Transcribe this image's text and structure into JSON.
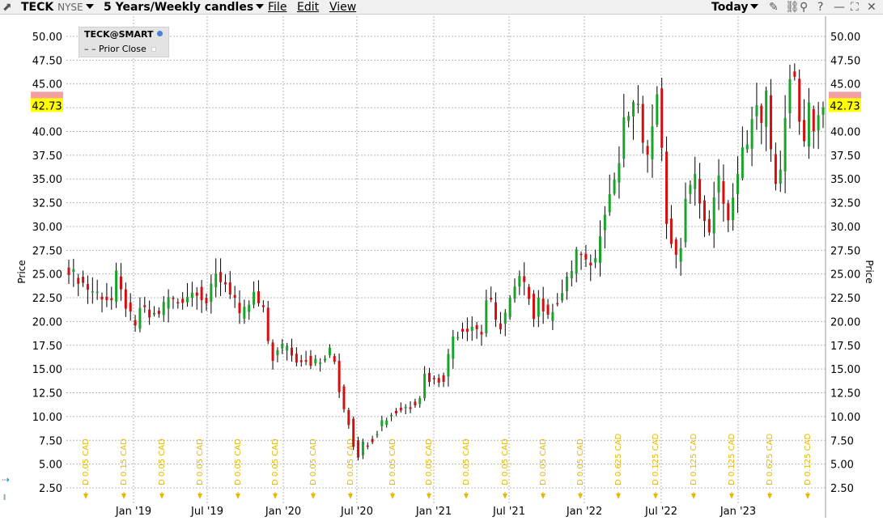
{
  "toolbar": {
    "symbol": "TECK",
    "exchange": "NYSE",
    "period": "5 Years/Weekly candles",
    "menu_file": "File",
    "menu_edit": "Edit",
    "menu_view": "View",
    "range": "Today"
  },
  "legend": {
    "contract": "TECK@SMART",
    "prior_close": "Prior Close"
  },
  "colors": {
    "up": "#1aa32a",
    "down": "#d40f0f",
    "price_tag": "#ffff00",
    "dividend": "#e6b800"
  },
  "price_axis_label": "Price",
  "last_price": "42.73",
  "chart_data": {
    "type": "candlestick",
    "y_ticks": [
      "50.00",
      "47.50",
      "45.00",
      "42.50",
      "40.00",
      "37.50",
      "35.00",
      "32.50",
      "30.00",
      "27.50",
      "25.00",
      "22.50",
      "20.00",
      "17.50",
      "15.00",
      "12.50",
      "10.00",
      "7.50",
      "5.00",
      "2.50"
    ],
    "x_ticks": [
      "Jan '19",
      "Jul '19",
      "Jan '20",
      "Jul '20",
      "Jan '21",
      "Jul '21",
      "Jan '22",
      "Jul '22",
      "Jan '23"
    ],
    "ylim": [
      1.5,
      51.5
    ],
    "dividends": [
      "D 0.05 CAD",
      "D 0.15 CAD",
      "D 0.05 CAD",
      "D 0.05 CAD",
      "D 0.05 CAD",
      "D 0.05 CAD",
      "D 0.05 CAD",
      "D 0.05 CAD",
      "D 0.05 CAD",
      "D 0.05 CAD",
      "D 0.05 CAD",
      "D 0.05 CAD",
      "D 0.05 CAD",
      "D 0.05 CAD",
      "D 0.625 CAD",
      "D 0.125 CAD",
      "D 0.125 CAD",
      "D 0.125 CAD",
      "D 0.625 CAD",
      "D 0.125 CAD"
    ],
    "close_path": [
      [
        0,
        25.5
      ],
      [
        4,
        23.5
      ],
      [
        9,
        22.2
      ],
      [
        10,
        24.8
      ],
      [
        11,
        23.0
      ],
      [
        14,
        19.2
      ],
      [
        15,
        21.5
      ],
      [
        17,
        20.5
      ],
      [
        19,
        21.0
      ],
      [
        21,
        22.5
      ],
      [
        23,
        22.0
      ],
      [
        25,
        22.8
      ],
      [
        27,
        23.3
      ],
      [
        29,
        22.0
      ],
      [
        31,
        24.8
      ],
      [
        33,
        24.0
      ],
      [
        35,
        22.4
      ],
      [
        36,
        20.3
      ],
      [
        38,
        21.8
      ],
      [
        39,
        22.8
      ],
      [
        40,
        21.8
      ],
      [
        41,
        21.0
      ],
      [
        42,
        18.0
      ],
      [
        43,
        16.2
      ],
      [
        45,
        17.3
      ],
      [
        46,
        17.7
      ],
      [
        47,
        16.4
      ],
      [
        48,
        16.1
      ],
      [
        49,
        16.2
      ],
      [
        51,
        15.8
      ],
      [
        53,
        15.6
      ],
      [
        55,
        16.8
      ],
      [
        56,
        15.8
      ],
      [
        57,
        12.9
      ],
      [
        58,
        11.0
      ],
      [
        59,
        9.5
      ],
      [
        60,
        7.2
      ],
      [
        61,
        6.2
      ],
      [
        62,
        7.0
      ],
      [
        64,
        7.8
      ],
      [
        66,
        9.5
      ],
      [
        68,
        10.3
      ],
      [
        70,
        10.8
      ],
      [
        72,
        11.2
      ],
      [
        74,
        12.3
      ],
      [
        75,
        14.4
      ],
      [
        77,
        13.7
      ],
      [
        79,
        14.2
      ],
      [
        80,
        16.3
      ],
      [
        81,
        18.5
      ],
      [
        83,
        19.2
      ],
      [
        85,
        19.6
      ],
      [
        87,
        18.8
      ],
      [
        88,
        22.3
      ],
      [
        89,
        21.8
      ],
      [
        90,
        19.8
      ],
      [
        91,
        19.6
      ],
      [
        93,
        22.2
      ],
      [
        95,
        24.5
      ],
      [
        97,
        22.8
      ],
      [
        98,
        20.8
      ],
      [
        99,
        22.5
      ],
      [
        101,
        20.2
      ],
      [
        102,
        21.5
      ],
      [
        104,
        23.0
      ],
      [
        106,
        25.5
      ],
      [
        107,
        27.5
      ],
      [
        109,
        26.0
      ],
      [
        111,
        26.5
      ],
      [
        112,
        29.5
      ],
      [
        113,
        31.8
      ],
      [
        115,
        35.0
      ],
      [
        116,
        36.7
      ],
      [
        117,
        41.0
      ],
      [
        119,
        42.5
      ],
      [
        120,
        43.2
      ],
      [
        121,
        38.5
      ],
      [
        122,
        37.0
      ],
      [
        123,
        41.0
      ],
      [
        124,
        44.5
      ],
      [
        125,
        38.0
      ],
      [
        126,
        30.5
      ],
      [
        127,
        28.5
      ],
      [
        128,
        26.5
      ],
      [
        129,
        28.0
      ],
      [
        130,
        33.0
      ],
      [
        131,
        34.0
      ],
      [
        132,
        35.2
      ],
      [
        133,
        33.0
      ],
      [
        134,
        30.5
      ],
      [
        135,
        29.0
      ],
      [
        136,
        33.5
      ],
      [
        137,
        35.0
      ],
      [
        138,
        32.0
      ],
      [
        139,
        31.0
      ],
      [
        141,
        35.2
      ],
      [
        142,
        38.0
      ],
      [
        143,
        38.2
      ],
      [
        144,
        41.8
      ],
      [
        145,
        42.5
      ],
      [
        146,
        40.5
      ],
      [
        147,
        43.8
      ],
      [
        148,
        38.0
      ],
      [
        149,
        34.5
      ],
      [
        150,
        35.5
      ],
      [
        151,
        42.0
      ],
      [
        152,
        46.0
      ],
      [
        153,
        45.5
      ],
      [
        154,
        41.0
      ],
      [
        155,
        38.5
      ],
      [
        156,
        42.5
      ],
      [
        157,
        40.0
      ],
      [
        158,
        42.0
      ],
      [
        159,
        42.73
      ]
    ]
  }
}
